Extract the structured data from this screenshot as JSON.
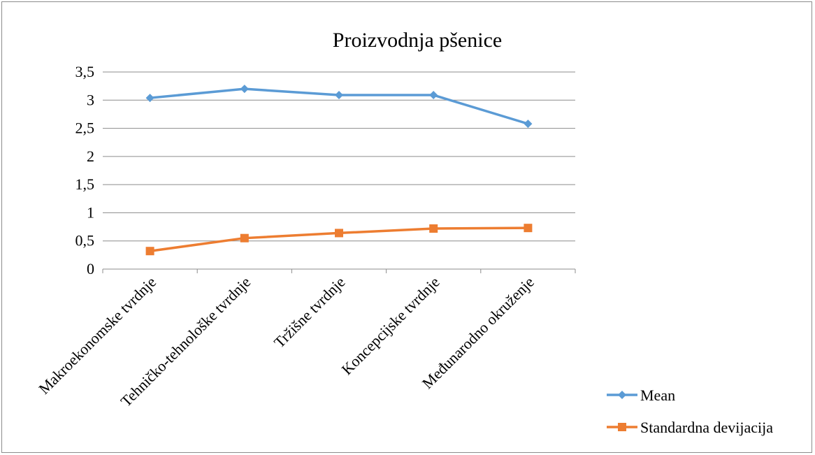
{
  "chart_data": {
    "type": "line",
    "title": "Proizvodnja pšenice",
    "xlabel": "",
    "ylabel": "",
    "categories": [
      "Makroekonomske tvrdnje",
      "Tehničko-tehnološke tvrdnje",
      "Tržišne tvrdnje",
      "Koncepcijske tvrdnje",
      "Međunarodno okruženje"
    ],
    "y_ticks": [
      "0",
      "0,5",
      "1",
      "1,5",
      "2",
      "2,5",
      "3",
      "3,5"
    ],
    "ylim": [
      0,
      3.5
    ],
    "grid": true,
    "legend_position": "bottom-right",
    "series": [
      {
        "name": "Mean",
        "values": [
          3.04,
          3.2,
          3.09,
          3.09,
          2.58
        ],
        "color": "#5b9bd5",
        "marker": "diamond"
      },
      {
        "name": "Standardna devijacija",
        "values": [
          0.32,
          0.55,
          0.64,
          0.72,
          0.73
        ],
        "color": "#ed7d31",
        "marker": "square"
      }
    ]
  }
}
